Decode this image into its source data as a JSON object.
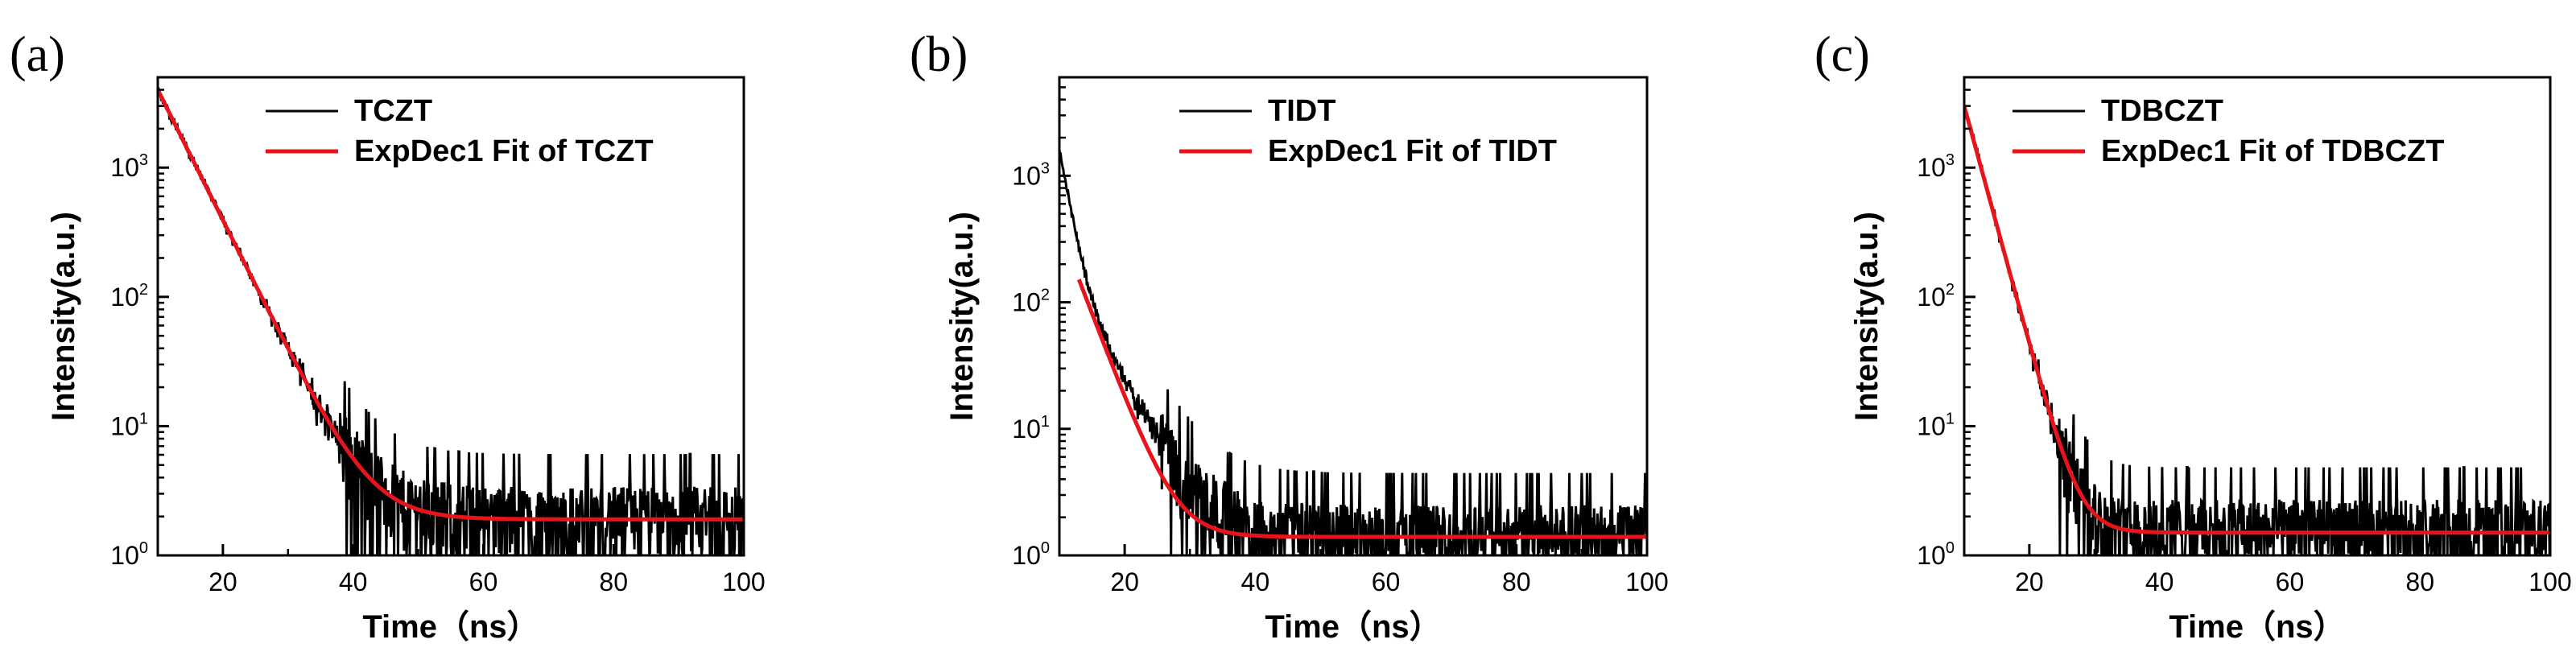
{
  "chart_data": [
    {
      "type": "line",
      "panel_label": "(a)",
      "xlabel": "Time（ns）",
      "ylabel": "Intensity(a.u.)",
      "xlim": [
        10,
        100
      ],
      "ylim": [
        1,
        5000
      ],
      "yscale": "log",
      "xticks": [
        20,
        40,
        60,
        80,
        100
      ],
      "yticks": [
        {
          "base": "10",
          "exp": "0",
          "value": 1
        },
        {
          "base": "10",
          "exp": "1",
          "value": 10
        },
        {
          "base": "10",
          "exp": "2",
          "value": 100
        },
        {
          "base": "10",
          "exp": "3",
          "value": 1000
        }
      ],
      "legend_position": "top-right",
      "series": [
        {
          "name": "TCZT",
          "color": "#000000",
          "style": "noisy-decay",
          "amplitude": 4000,
          "lifetime": 4.3,
          "baseline": 1.9
        },
        {
          "name": "ExpDec1 Fit of TCZT",
          "color": "#e8141b",
          "style": "fit",
          "x_start": 10,
          "amplitude": 4000,
          "lifetime": 4.3,
          "baseline": 1.9
        }
      ]
    },
    {
      "type": "line",
      "panel_label": "(b)",
      "xlabel": "Time（ns）",
      "ylabel": "Intensity(a.u.)",
      "xlim": [
        10,
        100
      ],
      "ylim": [
        1,
        6000
      ],
      "yscale": "log",
      "xticks": [
        20,
        40,
        60,
        80,
        100
      ],
      "yticks": [
        {
          "base": "10",
          "exp": "0",
          "value": 1
        },
        {
          "base": "10",
          "exp": "1",
          "value": 10
        },
        {
          "base": "10",
          "exp": "2",
          "value": 100
        },
        {
          "base": "10",
          "exp": "3",
          "value": 1000
        }
      ],
      "legend_position": "top-right",
      "series": [
        {
          "name": "TIDT",
          "color": "#000000",
          "style": "noisy-decay",
          "amplitude": 1400,
          "lifetime": 1.4,
          "amplitude2": 200,
          "lifetime2": 4.5,
          "baseline": 1.4
        },
        {
          "name": "ExpDec1 Fit of TIDT",
          "color": "#e8141b",
          "style": "fit",
          "x_start": 13,
          "amplitude": 150,
          "lifetime": 3.2,
          "baseline": 1.4
        }
      ]
    },
    {
      "type": "line",
      "panel_label": "(c)",
      "xlabel": "Time（ns）",
      "ylabel": "Intensity(a.u.)",
      "xlim": [
        10,
        100
      ],
      "ylim": [
        1,
        5000
      ],
      "yscale": "log",
      "xticks": [
        20,
        40,
        60,
        80,
        100
      ],
      "yticks": [
        {
          "base": "10",
          "exp": "0",
          "value": 1
        },
        {
          "base": "10",
          "exp": "1",
          "value": 10
        },
        {
          "base": "10",
          "exp": "2",
          "value": 100
        },
        {
          "base": "10",
          "exp": "3",
          "value": 1000
        }
      ],
      "legend_position": "top-right",
      "series": [
        {
          "name": "TDBCZT",
          "color": "#000000",
          "style": "noisy-decay",
          "amplitude": 3000,
          "lifetime": 2.35,
          "baseline": 1.5
        },
        {
          "name": "ExpDec1 Fit of TDBCZT",
          "color": "#e8141b",
          "style": "fit",
          "x_start": 10,
          "amplitude": 3000,
          "lifetime": 2.35,
          "baseline": 1.5
        }
      ]
    }
  ]
}
